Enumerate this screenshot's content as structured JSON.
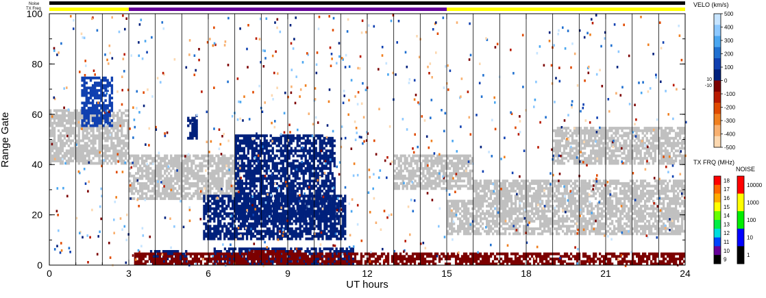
{
  "chart_data": {
    "type": "heatmap",
    "title": "",
    "xlabel": "UT hours",
    "ylabel": "Range Gate",
    "xlim": [
      0,
      24
    ],
    "ylim": [
      0,
      100
    ],
    "x_ticks": [
      "0",
      "3",
      "6",
      "9",
      "12",
      "15",
      "18",
      "21",
      "24"
    ],
    "y_ticks": [
      "0",
      "20",
      "40",
      "60",
      "80",
      "100"
    ],
    "top_bars": {
      "noise_label": "Noise",
      "txfreq_label": "TX Freq",
      "txfreq_segments": [
        {
          "start": 0,
          "end": 3,
          "color": "#ffff00"
        },
        {
          "start": 3,
          "end": 15,
          "color": "#660099"
        },
        {
          "start": 15,
          "end": 24,
          "color": "#ffff00"
        }
      ]
    },
    "velocity_colorbar": {
      "title": "VELO (km/s)",
      "ticks": [
        "500",
        "400",
        "300",
        "200",
        "100",
        "0",
        "-100",
        "-200",
        "-300",
        "-400",
        "-500"
      ],
      "small_ticks": [
        "10",
        "-10"
      ],
      "colors": [
        "#c6e4ff",
        "#8cc8ff",
        "#4aa6f0",
        "#2070d0",
        "#1040b0",
        "#00207c",
        "#7c0000",
        "#b81a00",
        "#e04a00",
        "#f08020",
        "#f8b070",
        "#fcd8b0"
      ]
    },
    "txfreq_colorbar": {
      "title": "TX FRQ (MHz)",
      "ticks": [
        "18",
        "17",
        "16",
        "15",
        "14",
        "13",
        "12",
        "11",
        "10",
        "9"
      ],
      "colors": [
        "#ff0000",
        "#ff6600",
        "#ffaa00",
        "#ffff00",
        "#66ff00",
        "#00ee44",
        "#00dddd",
        "#0044ff",
        "#660099",
        "#000000"
      ]
    },
    "noise_colorbar": {
      "title": "NOISE",
      "ticks": [
        "10000",
        "1000",
        "100",
        "10",
        "1"
      ],
      "colors": [
        "#ff0000",
        "#ffff00",
        "#00ee00",
        "#0000ff",
        "#000000"
      ]
    },
    "bands": [
      {
        "name": "gs-early",
        "t0": 0,
        "t1": 3,
        "g0": 40,
        "g1": 62,
        "color": "#c0c0c0"
      },
      {
        "name": "gs-mid",
        "t0": 3,
        "t1": 7.2,
        "g0": 26,
        "g1": 44,
        "color": "#c0c0c0"
      },
      {
        "name": "gs-morning",
        "t0": 13,
        "t1": 16,
        "g0": 30,
        "g1": 44,
        "color": "#c0c0c0"
      },
      {
        "name": "gs-late1",
        "t0": 15,
        "t1": 24,
        "g0": 12,
        "g1": 26,
        "color": "#c0c0c0"
      },
      {
        "name": "gs-late2",
        "t0": 16,
        "t1": 24,
        "g0": 26,
        "g1": 34,
        "color": "#c0c0c0"
      },
      {
        "name": "gs-late3",
        "t0": 19,
        "t1": 24,
        "g0": 40,
        "g1": 55,
        "color": "#c0c0c0"
      },
      {
        "name": "blue-arc-upper",
        "t0": 7.0,
        "t1": 10.8,
        "g0": 18,
        "g1": 52,
        "color": "#00207c"
      },
      {
        "name": "blue-arc-lower",
        "t0": 5.8,
        "t1": 11.2,
        "g0": 10,
        "g1": 28,
        "color": "#00207c"
      },
      {
        "name": "blue-near",
        "t0": 3.8,
        "t1": 5.2,
        "g0": 0,
        "g1": 6,
        "color": "#00207c"
      },
      {
        "name": "blue-near2",
        "t0": 6.2,
        "t1": 11.5,
        "g0": 0,
        "g1": 7,
        "color": "#00207c"
      },
      {
        "name": "red-near",
        "t0": 3.2,
        "t1": 24,
        "g0": 0,
        "g1": 5,
        "color": "#7c0000"
      },
      {
        "name": "red-near-mid",
        "t0": 7.5,
        "t1": 9.5,
        "g0": 2,
        "g1": 6,
        "color": "#7c0000"
      },
      {
        "name": "blue-patch-60",
        "t0": 5.2,
        "t1": 5.6,
        "g0": 50,
        "g1": 60,
        "color": "#00207c"
      },
      {
        "name": "blue-patch-65",
        "t0": 1.2,
        "t1": 2.4,
        "g0": 55,
        "g1": 75,
        "color": "#1040b0"
      }
    ]
  }
}
